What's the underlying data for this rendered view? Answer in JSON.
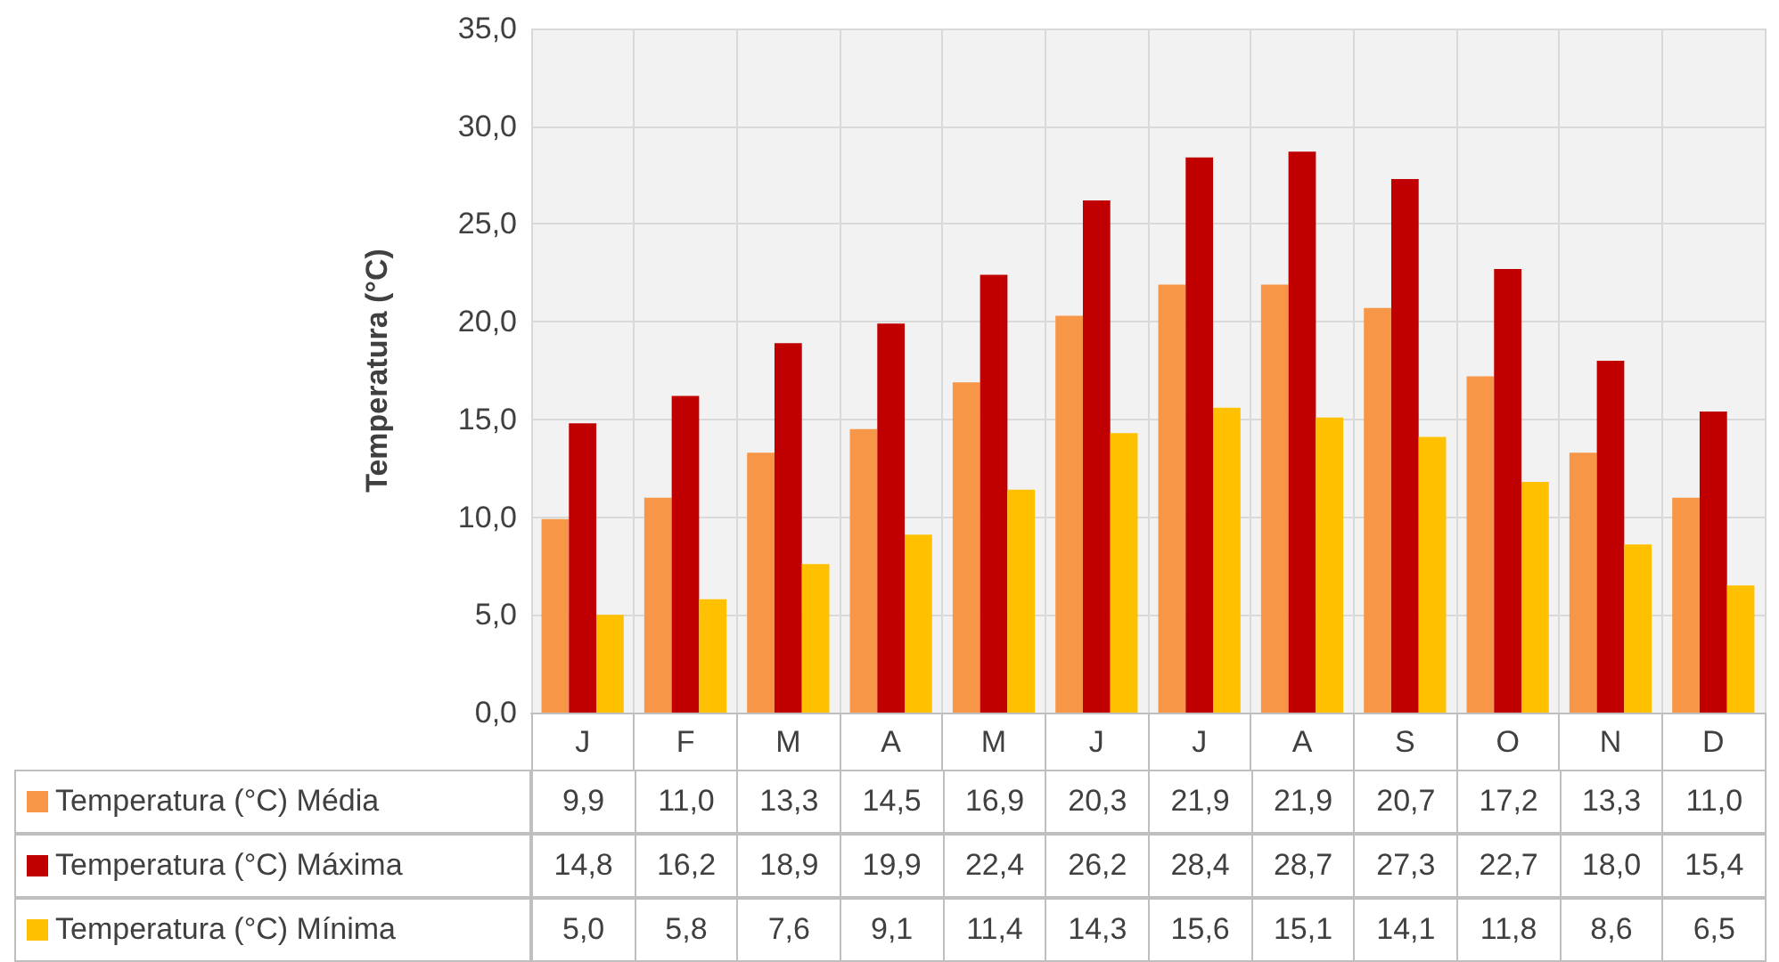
{
  "chart_data": {
    "type": "bar",
    "ylabel": "Temperatura (°C)",
    "categories": [
      "J",
      "F",
      "M",
      "A",
      "M",
      "J",
      "J",
      "A",
      "S",
      "O",
      "N",
      "D"
    ],
    "series": [
      {
        "name": "Temperatura (°C) Média",
        "color": "#f79646",
        "values": [
          9.9,
          11.0,
          13.3,
          14.5,
          16.9,
          20.3,
          21.9,
          21.9,
          20.7,
          17.2,
          13.3,
          11.0
        ],
        "value_labels": [
          "9,9",
          "11,0",
          "13,3",
          "14,5",
          "16,9",
          "20,3",
          "21,9",
          "21,9",
          "20,7",
          "17,2",
          "13,3",
          "11,0"
        ]
      },
      {
        "name": "Temperatura (°C) Máxima",
        "color": "#c00000",
        "values": [
          14.8,
          16.2,
          18.9,
          19.9,
          22.4,
          26.2,
          28.4,
          28.7,
          27.3,
          22.7,
          18.0,
          15.4
        ],
        "value_labels": [
          "14,8",
          "16,2",
          "18,9",
          "19,9",
          "22,4",
          "26,2",
          "28,4",
          "28,7",
          "27,3",
          "22,7",
          "18,0",
          "15,4"
        ]
      },
      {
        "name": "Temperatura (°C) Mínima",
        "color": "#ffc000",
        "values": [
          5.0,
          5.8,
          7.6,
          9.1,
          11.4,
          14.3,
          15.6,
          15.1,
          14.1,
          11.8,
          8.6,
          6.5
        ],
        "value_labels": [
          "5,0",
          "5,8",
          "7,6",
          "9,1",
          "11,4",
          "14,3",
          "15,6",
          "15,1",
          "14,1",
          "11,8",
          "8,6",
          "6,5"
        ]
      }
    ],
    "ylim": [
      0,
      35
    ],
    "yticks": [
      {
        "value": 0,
        "label": "0,0"
      },
      {
        "value": 5,
        "label": "5,0"
      },
      {
        "value": 10,
        "label": "10,0"
      },
      {
        "value": 15,
        "label": "15,0"
      },
      {
        "value": 20,
        "label": "20,0"
      },
      {
        "value": 25,
        "label": "25,0"
      },
      {
        "value": 30,
        "label": "30,0"
      },
      {
        "value": 35,
        "label": "35,0"
      }
    ],
    "grid": true,
    "legend": "bottom"
  }
}
